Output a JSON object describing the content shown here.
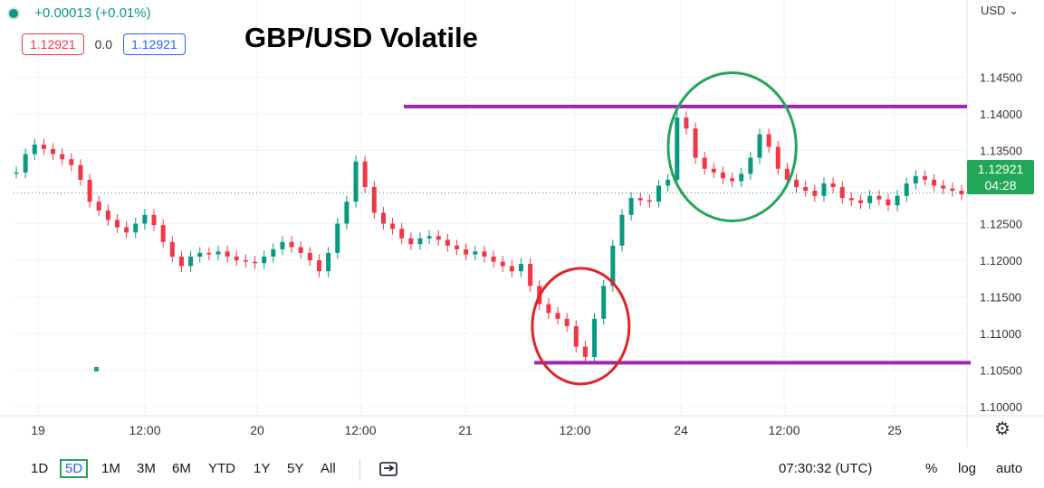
{
  "header": {
    "change_text": "+0.00013 (+0.01%)",
    "bid": "1.12921",
    "spread": "0.0",
    "ask": "1.12921",
    "currency": "USD",
    "price_tag_value": "1.12921",
    "price_tag_countdown": "04:28"
  },
  "toolbar": {
    "ranges": [
      "1D",
      "5D",
      "1M",
      "3M",
      "6M",
      "YTD",
      "1Y",
      "5Y",
      "All"
    ],
    "active_range": "5D",
    "time_text": "07:30:32 (UTC)",
    "percent": "%",
    "log": "log",
    "auto": "auto"
  },
  "colors": {
    "up": "#089981",
    "down": "#f23645",
    "resistance_line": "#9c27b0",
    "green_circle": "#22a658",
    "red_circle": "#e0242a"
  },
  "chart_data": {
    "type": "line",
    "title": "GBP/USD Volatile",
    "y_axis": {
      "min": 1.1,
      "max": 1.15,
      "ticks": [
        "1.14500",
        "1.14000",
        "1.13500",
        "1.13000",
        "1.12500",
        "1.12000",
        "1.11500",
        "1.11000",
        "1.10500",
        "1.10000"
      ]
    },
    "x_axis": {
      "ticks": [
        "19",
        "12:00",
        "20",
        "12:00",
        "21",
        "12:00",
        "24",
        "12:00",
        "25"
      ]
    },
    "series": [
      {
        "values": [
          1.132,
          1.1345,
          1.1358,
          1.1352,
          1.1345,
          1.1338,
          1.133,
          1.131,
          1.128,
          1.1268,
          1.1255,
          1.1245,
          1.1238,
          1.125,
          1.1262,
          1.1248,
          1.1225,
          1.1205,
          1.1192,
          1.1205,
          1.121,
          1.1208,
          1.1212,
          1.1205,
          1.12,
          1.1198,
          1.1196,
          1.1205,
          1.1215,
          1.1225,
          1.1218,
          1.121,
          1.12,
          1.1185,
          1.121,
          1.125,
          1.128,
          1.1335,
          1.13,
          1.1265,
          1.125,
          1.1243,
          1.123,
          1.1222,
          1.123,
          1.1233,
          1.1228,
          1.122,
          1.1215,
          1.1208,
          1.1212,
          1.1205,
          1.1198,
          1.1192,
          1.1185,
          1.1195,
          1.1165,
          1.114,
          1.1128,
          1.112,
          1.111,
          1.1082,
          1.1068,
          1.112,
          1.1165,
          1.122,
          1.1262,
          1.1285,
          1.1282,
          1.128,
          1.1302,
          1.131,
          1.1395,
          1.138,
          1.134,
          1.1325,
          1.132,
          1.1312,
          1.1308,
          1.1318,
          1.134,
          1.1372,
          1.1355,
          1.1325,
          1.131,
          1.13,
          1.1295,
          1.1288,
          1.1305,
          1.13,
          1.1285,
          1.1282,
          1.1278,
          1.1288,
          1.1283,
          1.1275,
          1.1288,
          1.1305,
          1.1315,
          1.131,
          1.1302,
          1.1298,
          1.1295,
          1.129
        ],
        "label_last": "1.12921"
      }
    ],
    "annotations": {
      "resistance_level": 1.141,
      "support_level": 1.106,
      "green_circle": {
        "label": "",
        "x_range": [
          73,
          83
        ],
        "y_center": 1.1355
      },
      "red_circle": {
        "label": "",
        "x_range": [
          58,
          65
        ],
        "y_center": 1.111
      }
    },
    "current_price": 1.12921,
    "grid": true
  }
}
